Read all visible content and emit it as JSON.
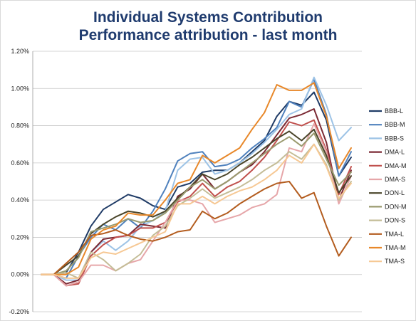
{
  "chart_data": {
    "type": "line",
    "title": "Individual Systems Contribution",
    "subtitle": "Performance attribution - last month",
    "xlabel": "",
    "ylabel": "",
    "ylim": [
      -0.2,
      1.2
    ],
    "y_tick_labels": [
      "-0.20%",
      "0.00%",
      "0.20%",
      "0.40%",
      "0.60%",
      "0.80%",
      "1.00%",
      "1.20%"
    ],
    "y_ticks": [
      -0.2,
      0.0,
      0.2,
      0.4,
      0.6,
      0.8,
      1.0,
      1.2
    ],
    "grid": "horizontal",
    "legend": "right",
    "x": [
      1,
      2,
      3,
      4,
      5,
      6,
      7,
      8,
      9,
      10,
      11,
      12,
      13,
      14,
      15,
      16,
      17,
      18,
      19,
      20,
      21,
      22,
      23,
      24,
      25,
      26
    ],
    "series": [
      {
        "name": "BBB-L",
        "color": "#1f3b66",
        "values": [
          0,
          0,
          0.01,
          0.12,
          0.26,
          0.35,
          0.39,
          0.43,
          0.41,
          0.37,
          0.35,
          0.47,
          0.49,
          0.55,
          0.56,
          0.56,
          0.6,
          0.66,
          0.72,
          0.85,
          0.93,
          0.91,
          0.98,
          0.83,
          0.53,
          0.63
        ]
      },
      {
        "name": "BBB-M",
        "color": "#4f81bd",
        "values": [
          0,
          0,
          -0.02,
          0.1,
          0.2,
          0.27,
          0.24,
          0.3,
          0.25,
          0.34,
          0.46,
          0.61,
          0.65,
          0.66,
          0.58,
          0.59,
          0.62,
          0.68,
          0.73,
          0.79,
          0.93,
          0.9,
          1.05,
          0.86,
          0.53,
          0.66
        ]
      },
      {
        "name": "BBB-S",
        "color": "#9dc3e6",
        "values": [
          0,
          0,
          -0.03,
          -0.03,
          0.12,
          0.18,
          0.13,
          0.18,
          0.26,
          0.29,
          0.34,
          0.56,
          0.62,
          0.63,
          0.54,
          0.56,
          0.6,
          0.65,
          0.71,
          0.78,
          0.86,
          0.89,
          1.06,
          0.91,
          0.72,
          0.79
        ]
      },
      {
        "name": "DMA-L",
        "color": "#7b2a34",
        "values": [
          0,
          0,
          -0.05,
          -0.03,
          0.12,
          0.19,
          0.2,
          0.21,
          0.27,
          0.26,
          0.25,
          0.42,
          0.46,
          0.54,
          0.46,
          0.5,
          0.55,
          0.59,
          0.66,
          0.75,
          0.84,
          0.86,
          0.89,
          0.71,
          0.4,
          0.56
        ]
      },
      {
        "name": "DMA-M",
        "color": "#c0504d",
        "values": [
          0,
          0,
          -0.06,
          -0.05,
          0.1,
          0.16,
          0.2,
          0.21,
          0.25,
          0.25,
          0.28,
          0.39,
          0.42,
          0.49,
          0.42,
          0.47,
          0.5,
          0.56,
          0.63,
          0.72,
          0.82,
          0.8,
          0.83,
          0.67,
          0.43,
          0.58
        ]
      },
      {
        "name": "DMA-S",
        "color": "#e6a6a9",
        "values": [
          0,
          0,
          -0.06,
          -0.04,
          0.05,
          0.05,
          0.02,
          0.06,
          0.08,
          0.18,
          0.28,
          0.4,
          0.4,
          0.38,
          0.28,
          0.3,
          0.32,
          0.36,
          0.38,
          0.43,
          0.68,
          0.66,
          0.81,
          0.66,
          0.38,
          0.53
        ]
      },
      {
        "name": "DON-L",
        "color": "#4a452a",
        "values": [
          0,
          0,
          0.05,
          0.1,
          0.22,
          0.27,
          0.31,
          0.34,
          0.33,
          0.31,
          0.34,
          0.41,
          0.47,
          0.54,
          0.51,
          0.54,
          0.59,
          0.63,
          0.68,
          0.73,
          0.77,
          0.72,
          0.78,
          0.64,
          0.44,
          0.53
        ]
      },
      {
        "name": "DON-M",
        "color": "#9a9a6e",
        "values": [
          0,
          0,
          0.02,
          0.09,
          0.23,
          0.25,
          0.27,
          0.3,
          0.28,
          0.29,
          0.33,
          0.4,
          0.47,
          0.51,
          0.46,
          0.5,
          0.55,
          0.6,
          0.65,
          0.7,
          0.74,
          0.69,
          0.76,
          0.62,
          0.48,
          0.55
        ]
      },
      {
        "name": "DON-S",
        "color": "#c4bd97",
        "values": [
          0,
          0,
          0.01,
          -0.02,
          0.12,
          0.08,
          0.02,
          0.06,
          0.11,
          0.21,
          0.26,
          0.37,
          0.41,
          0.46,
          0.41,
          0.44,
          0.47,
          0.51,
          0.56,
          0.6,
          0.66,
          0.62,
          0.7,
          0.59,
          0.4,
          0.5
        ]
      },
      {
        "name": "TMA-L",
        "color": "#b35c1e",
        "values": [
          0,
          0,
          0.06,
          0.12,
          0.21,
          0.22,
          0.24,
          0.21,
          0.19,
          0.18,
          0.2,
          0.23,
          0.24,
          0.34,
          0.3,
          0.33,
          0.38,
          0.42,
          0.46,
          0.49,
          0.5,
          0.41,
          0.44,
          0.26,
          0.1,
          0.2
        ]
      },
      {
        "name": "TMA-M",
        "color": "#e8882a",
        "values": [
          0,
          0,
          0.0,
          0.04,
          0.19,
          0.24,
          0.26,
          0.33,
          0.32,
          0.32,
          0.4,
          0.49,
          0.51,
          0.64,
          0.6,
          0.64,
          0.68,
          0.78,
          0.87,
          1.02,
          0.99,
          0.99,
          1.03,
          0.85,
          0.57,
          0.68
        ]
      },
      {
        "name": "TMA-S",
        "color": "#f6c894",
        "values": [
          0,
          0,
          -0.02,
          -0.02,
          0.09,
          0.12,
          0.11,
          0.14,
          0.17,
          0.2,
          0.23,
          0.38,
          0.38,
          0.42,
          0.38,
          0.42,
          0.45,
          0.47,
          0.51,
          0.56,
          0.64,
          0.6,
          0.7,
          0.58,
          0.41,
          0.49
        ]
      }
    ]
  }
}
